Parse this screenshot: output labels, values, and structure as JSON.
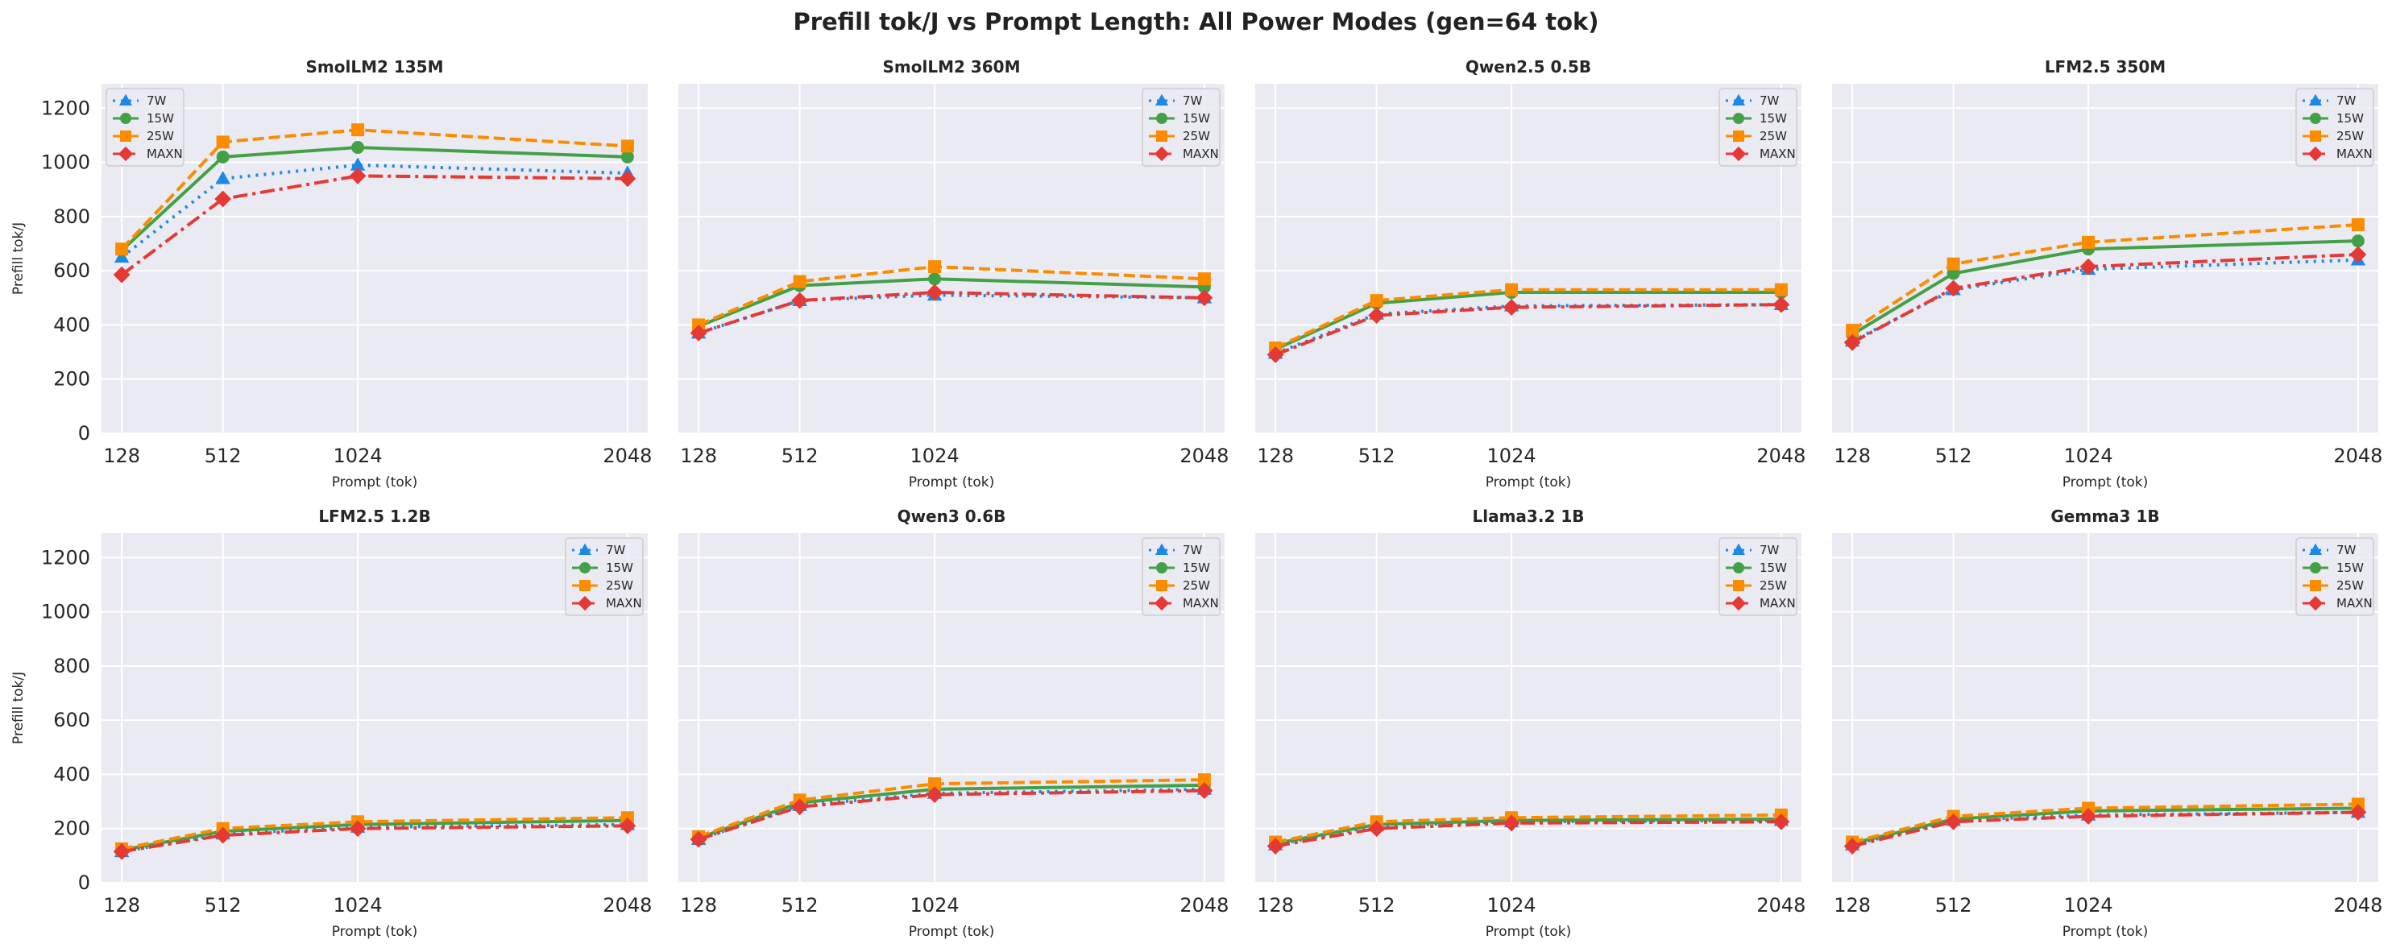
{
  "title": "Prefill tok/J vs Prompt Length: All Power Modes (gen=64 tok)",
  "colors": {
    "7W": "#1e88e5",
    "15W": "#43a047",
    "25W": "#fb8c00",
    "MAXN": "#e53935"
  },
  "chart_data": [
    {
      "type": "line",
      "title": "SmolLM2 135M",
      "xlabel": "Prompt (tok)",
      "ylabel": "Prefill tok/J",
      "x": [
        128,
        512,
        1024,
        2048
      ],
      "ylim": [
        0,
        1290
      ],
      "yticks": [
        0,
        200,
        400,
        600,
        800,
        1000,
        1200
      ],
      "grid": true,
      "legend_position": "upper left",
      "series": [
        {
          "name": "7W",
          "values": [
            650,
            940,
            990,
            960
          ]
        },
        {
          "name": "15W",
          "values": [
            675,
            1020,
            1055,
            1020
          ]
        },
        {
          "name": "25W",
          "values": [
            680,
            1075,
            1120,
            1060
          ]
        },
        {
          "name": "MAXN",
          "values": [
            585,
            865,
            950,
            940
          ]
        }
      ]
    },
    {
      "type": "line",
      "title": "SmolLM2 360M",
      "xlabel": "Prompt (tok)",
      "ylabel": "",
      "x": [
        128,
        512,
        1024,
        2048
      ],
      "ylim": [
        0,
        1290
      ],
      "yticks": [
        0,
        200,
        400,
        600,
        800,
        1000,
        1200
      ],
      "grid": true,
      "legend_position": "upper right",
      "series": [
        {
          "name": "7W",
          "values": [
            370,
            490,
            510,
            500
          ]
        },
        {
          "name": "15W",
          "values": [
            395,
            545,
            570,
            540
          ]
        },
        {
          "name": "25W",
          "values": [
            400,
            560,
            615,
            570
          ]
        },
        {
          "name": "MAXN",
          "values": [
            370,
            490,
            520,
            500
          ]
        }
      ]
    },
    {
      "type": "line",
      "title": "Qwen2.5 0.5B",
      "xlabel": "Prompt (tok)",
      "ylabel": "",
      "x": [
        128,
        512,
        1024,
        2048
      ],
      "ylim": [
        0,
        1290
      ],
      "yticks": [
        0,
        200,
        400,
        600,
        800,
        1000,
        1200
      ],
      "grid": true,
      "legend_position": "upper right",
      "series": [
        {
          "name": "7W",
          "values": [
            295,
            440,
            470,
            475
          ]
        },
        {
          "name": "15W",
          "values": [
            310,
            480,
            520,
            520
          ]
        },
        {
          "name": "25W",
          "values": [
            315,
            490,
            530,
            530
          ]
        },
        {
          "name": "MAXN",
          "values": [
            290,
            435,
            465,
            475
          ]
        }
      ]
    },
    {
      "type": "line",
      "title": "LFM2.5 350M",
      "xlabel": "Prompt (tok)",
      "ylabel": "",
      "x": [
        128,
        512,
        1024,
        2048
      ],
      "ylim": [
        0,
        1290
      ],
      "yticks": [
        0,
        200,
        400,
        600,
        800,
        1000,
        1200
      ],
      "grid": true,
      "legend_position": "upper right",
      "series": [
        {
          "name": "7W",
          "values": [
            340,
            530,
            605,
            640
          ]
        },
        {
          "name": "15W",
          "values": [
            365,
            590,
            680,
            710
          ]
        },
        {
          "name": "25W",
          "values": [
            380,
            625,
            705,
            770
          ]
        },
        {
          "name": "MAXN",
          "values": [
            335,
            535,
            615,
            660
          ]
        }
      ]
    },
    {
      "type": "line",
      "title": "LFM2.5 1.2B",
      "xlabel": "Prompt (tok)",
      "ylabel": "Prefill tok/J",
      "x": [
        128,
        512,
        1024,
        2048
      ],
      "ylim": [
        0,
        1290
      ],
      "yticks": [
        0,
        200,
        400,
        600,
        800,
        1000,
        1200
      ],
      "grid": true,
      "legend_position": "upper right",
      "series": [
        {
          "name": "7W",
          "values": [
            115,
            180,
            205,
            215
          ]
        },
        {
          "name": "15W",
          "values": [
            120,
            190,
            215,
            230
          ]
        },
        {
          "name": "25W",
          "values": [
            125,
            200,
            225,
            240
          ]
        },
        {
          "name": "MAXN",
          "values": [
            115,
            175,
            200,
            210
          ]
        }
      ]
    },
    {
      "type": "line",
      "title": "Qwen3 0.6B",
      "xlabel": "Prompt (tok)",
      "ylabel": "",
      "x": [
        128,
        512,
        1024,
        2048
      ],
      "ylim": [
        0,
        1290
      ],
      "yticks": [
        0,
        200,
        400,
        600,
        800,
        1000,
        1200
      ],
      "grid": true,
      "legend_position": "upper right",
      "series": [
        {
          "name": "7W",
          "values": [
            160,
            285,
            330,
            345
          ]
        },
        {
          "name": "15W",
          "values": [
            165,
            295,
            345,
            360
          ]
        },
        {
          "name": "25W",
          "values": [
            170,
            305,
            365,
            380
          ]
        },
        {
          "name": "MAXN",
          "values": [
            160,
            280,
            325,
            340
          ]
        }
      ]
    },
    {
      "type": "line",
      "title": "Llama3.2 1B",
      "xlabel": "Prompt (tok)",
      "ylabel": "",
      "x": [
        128,
        512,
        1024,
        2048
      ],
      "ylim": [
        0,
        1290
      ],
      "yticks": [
        0,
        200,
        400,
        600,
        800,
        1000,
        1200
      ],
      "grid": true,
      "legend_position": "upper right",
      "series": [
        {
          "name": "7W",
          "values": [
            140,
            210,
            225,
            230
          ]
        },
        {
          "name": "15W",
          "values": [
            145,
            215,
            230,
            235
          ]
        },
        {
          "name": "25W",
          "values": [
            150,
            225,
            240,
            250
          ]
        },
        {
          "name": "MAXN",
          "values": [
            135,
            200,
            220,
            225
          ]
        }
      ]
    },
    {
      "type": "line",
      "title": "Gemma3 1B",
      "xlabel": "Prompt (tok)",
      "ylabel": "",
      "x": [
        128,
        512,
        1024,
        2048
      ],
      "ylim": [
        0,
        1290
      ],
      "yticks": [
        0,
        200,
        400,
        600,
        800,
        1000,
        1200
      ],
      "grid": true,
      "legend_position": "upper right",
      "series": [
        {
          "name": "7W",
          "values": [
            140,
            230,
            250,
            260
          ]
        },
        {
          "name": "15W",
          "values": [
            145,
            235,
            265,
            275
          ]
        },
        {
          "name": "25W",
          "values": [
            150,
            245,
            275,
            290
          ]
        },
        {
          "name": "MAXN",
          "values": [
            135,
            225,
            245,
            260
          ]
        }
      ]
    }
  ]
}
